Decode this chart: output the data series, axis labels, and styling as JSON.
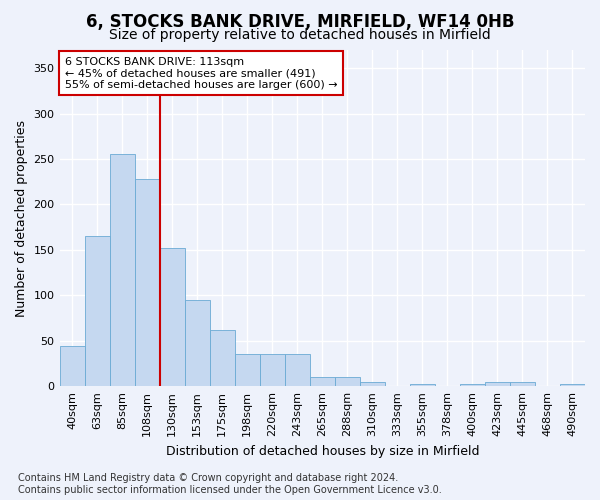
{
  "title": "6, STOCKS BANK DRIVE, MIRFIELD, WF14 0HB",
  "subtitle": "Size of property relative to detached houses in Mirfield",
  "xlabel": "Distribution of detached houses by size in Mirfield",
  "ylabel": "Number of detached properties",
  "categories": [
    "40sqm",
    "63sqm",
    "85sqm",
    "108sqm",
    "130sqm",
    "153sqm",
    "175sqm",
    "198sqm",
    "220sqm",
    "243sqm",
    "265sqm",
    "288sqm",
    "310sqm",
    "333sqm",
    "355sqm",
    "378sqm",
    "400sqm",
    "423sqm",
    "445sqm",
    "468sqm",
    "490sqm"
  ],
  "values": [
    44,
    165,
    255,
    228,
    152,
    95,
    62,
    35,
    35,
    35,
    10,
    10,
    5,
    0,
    2,
    0,
    2,
    5,
    5,
    0,
    2
  ],
  "bar_color": "#c5d8f0",
  "bar_edge_color": "#6aaad4",
  "vline_x_idx": 3,
  "vline_color": "#cc0000",
  "annotation_text": "6 STOCKS BANK DRIVE: 113sqm\n← 45% of detached houses are smaller (491)\n55% of semi-detached houses are larger (600) →",
  "annotation_box_color": "#ffffff",
  "annotation_box_edge": "#cc0000",
  "bg_color": "#eef2fb",
  "grid_color": "#ffffff",
  "footer": "Contains HM Land Registry data © Crown copyright and database right 2024.\nContains public sector information licensed under the Open Government Licence v3.0.",
  "ylim": [
    0,
    370
  ],
  "yticks": [
    0,
    50,
    100,
    150,
    200,
    250,
    300,
    350
  ],
  "title_fontsize": 12,
  "subtitle_fontsize": 10,
  "axis_label_fontsize": 9,
  "tick_fontsize": 8,
  "annotation_fontsize": 8,
  "footer_fontsize": 7
}
